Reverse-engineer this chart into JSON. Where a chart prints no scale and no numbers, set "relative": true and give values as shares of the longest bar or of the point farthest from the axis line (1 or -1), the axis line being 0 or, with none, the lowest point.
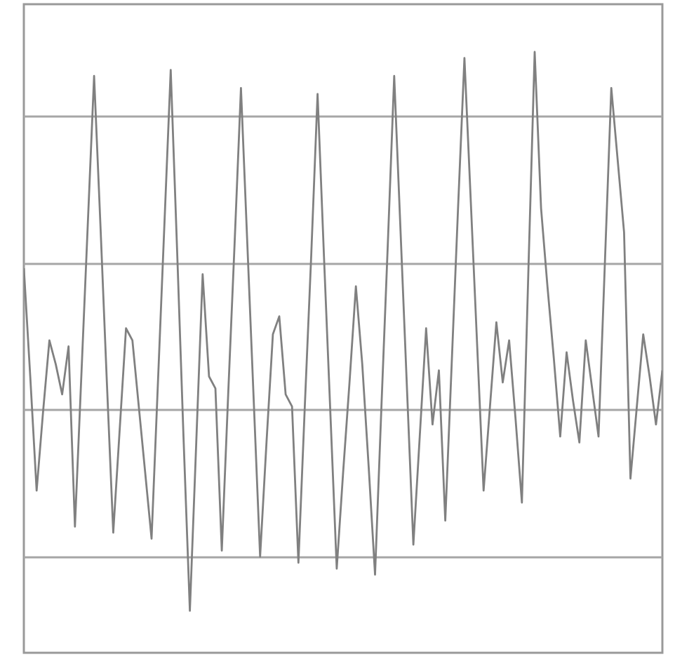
{
  "chart_data": {
    "type": "line",
    "relative": true,
    "grid": true,
    "marker": "none",
    "line_style": "solid",
    "categories": [
      null,
      null,
      null,
      null,
      null,
      null,
      null,
      null,
      null,
      null,
      null,
      null,
      null,
      null,
      null,
      null,
      null,
      null,
      null,
      null,
      null,
      null,
      null,
      null,
      null,
      null,
      null,
      null,
      null,
      null,
      null,
      null,
      null,
      null,
      null,
      null,
      null,
      null,
      null,
      null,
      null,
      null,
      null,
      null,
      null,
      null,
      null,
      null,
      null,
      null,
      null,
      null,
      null,
      null,
      null,
      null,
      null,
      null,
      null,
      null,
      null,
      null,
      null,
      null,
      null,
      null,
      null,
      null,
      null,
      null,
      null,
      null,
      null,
      null,
      null,
      null,
      null,
      null,
      null,
      null,
      null,
      null,
      null,
      null,
      null,
      null,
      null,
      null,
      null,
      null,
      null,
      null,
      null,
      null,
      null,
      null,
      null,
      null,
      null,
      null,
      null
    ],
    "series": [
      {
        "color": "#808080",
        "values": [
          0.64,
          0.46,
          0.27,
          0.4,
          0.52,
          0.48,
          0.43,
          0.51,
          0.21,
          0.46,
          0.71,
          0.96,
          0.71,
          0.45,
          0.2,
          0.37,
          0.54,
          0.52,
          0.41,
          0.3,
          0.19,
          0.45,
          0.71,
          0.97,
          0.67,
          0.36,
          0.07,
          0.35,
          0.63,
          0.46,
          0.44,
          0.17,
          0.43,
          0.68,
          0.94,
          0.68,
          0.42,
          0.16,
          0.35,
          0.53,
          0.56,
          0.43,
          0.41,
          0.15,
          0.41,
          0.66,
          0.93,
          0.66,
          0.4,
          0.14,
          0.3,
          0.45,
          0.61,
          0.48,
          0.31,
          0.13,
          0.41,
          0.68,
          0.96,
          0.7,
          0.44,
          0.18,
          0.36,
          0.54,
          0.38,
          0.47,
          0.22,
          0.48,
          0.74,
          0.99,
          0.75,
          0.51,
          0.27,
          0.41,
          0.55,
          0.45,
          0.52,
          0.39,
          0.25,
          0.63,
          1.0,
          0.74,
          0.61,
          0.49,
          0.36,
          0.5,
          0.42,
          0.35,
          0.52,
          0.44,
          0.36,
          0.65,
          0.94,
          0.82,
          0.7,
          0.29,
          0.41,
          0.53,
          0.46,
          0.38,
          0.47
        ]
      }
    ]
  }
}
